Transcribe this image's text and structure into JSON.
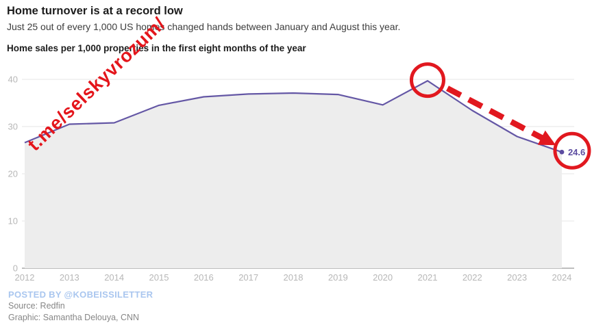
{
  "header": {
    "title": "Home turnover is at a record low",
    "subtitle": "Just 25 out of every 1,000 US homes changed hands between January and August this year.",
    "chart_label": "Home sales per 1,000 properties in the first eight months of the year"
  },
  "chart_data": {
    "type": "area",
    "title": "Home sales per 1,000 properties in the first eight months of the year",
    "categories": [
      "2012",
      "2013",
      "2014",
      "2015",
      "2016",
      "2017",
      "2018",
      "2019",
      "2020",
      "2021",
      "2022",
      "2023",
      "2024"
    ],
    "values": [
      26.6,
      30.5,
      30.8,
      34.5,
      36.3,
      36.9,
      37.1,
      36.8,
      34.6,
      39.7,
      33.4,
      27.9,
      24.6
    ],
    "xlabel": "",
    "ylabel": "",
    "ylim": [
      0,
      40
    ],
    "y_ticks": [
      0,
      10,
      20,
      30,
      40
    ],
    "grid": true,
    "legend": "none",
    "end_point_label": "24.6",
    "line_color": "#6457a5",
    "fill_color": "#ededed",
    "grid_color": "#eaeaea",
    "axis_color": "#a8a8a8",
    "tick_label_color": "#b7b7b7",
    "end_label_color": "#5b4ba0"
  },
  "annotations": {
    "watermark": "t.me/selskyvrozum/",
    "watermark_color": "#e4151b",
    "circled_peak_year": "2021",
    "circled_end_value": "24.6",
    "annotation_color": "#e1181f",
    "arrow_style": "dashed"
  },
  "footer": {
    "posted_by": "POSTED BY @KOBEISSILETTER",
    "source": "Source: Redfin",
    "graphic": "Graphic: Samantha Delouya, CNN"
  }
}
